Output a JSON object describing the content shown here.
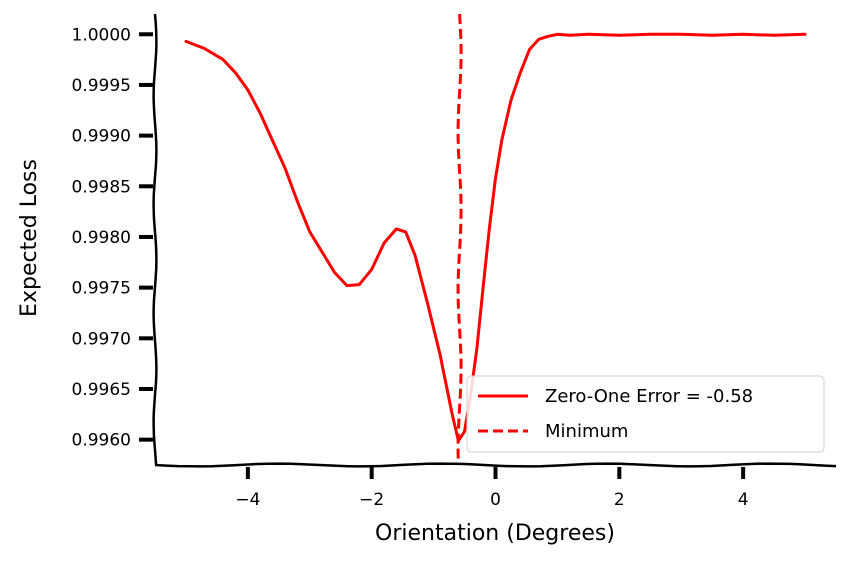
{
  "chart_data": {
    "type": "line",
    "title": "",
    "xlabel": "Orientation (Degrees)",
    "ylabel": "Expected Loss",
    "xlim": [
      -5.5,
      5.5
    ],
    "ylim": [
      0.99575,
      1.0002
    ],
    "x_ticks": [
      -4,
      -2,
      0,
      2,
      4
    ],
    "x_tick_labels": [
      "−4",
      "−2",
      "0",
      "2",
      "4"
    ],
    "y_ticks": [
      0.996,
      0.9965,
      0.997,
      0.9975,
      0.998,
      0.9985,
      0.999,
      0.9995,
      1.0
    ],
    "y_tick_labels": [
      "0.9960",
      "0.9965",
      "0.9970",
      "0.9975",
      "0.9980",
      "0.9985",
      "0.9990",
      "0.9995",
      "1.0000"
    ],
    "grid": false,
    "legend_position": "lower-right",
    "series": [
      {
        "name": "Zero-One Error = -0.58",
        "color": "#ff0000",
        "style": "solid",
        "x": [
          -5.0,
          -4.7,
          -4.4,
          -4.2,
          -4.0,
          -3.8,
          -3.6,
          -3.4,
          -3.2,
          -3.0,
          -2.8,
          -2.6,
          -2.4,
          -2.2,
          -2.0,
          -1.8,
          -1.6,
          -1.45,
          -1.3,
          -1.1,
          -0.9,
          -0.8,
          -0.7,
          -0.6,
          -0.5,
          -0.4,
          -0.3,
          -0.2,
          -0.1,
          0.0,
          0.1,
          0.25,
          0.4,
          0.55,
          0.7,
          0.85,
          1.0,
          1.2,
          1.5,
          2.0,
          2.5,
          3.0,
          3.5,
          4.0,
          4.5,
          5.0
        ],
        "y": [
          0.99993,
          0.99986,
          0.99975,
          0.99962,
          0.99945,
          0.99922,
          0.99895,
          0.99868,
          0.99835,
          0.99805,
          0.99785,
          0.99765,
          0.99752,
          0.99753,
          0.99768,
          0.99794,
          0.99808,
          0.99805,
          0.99782,
          0.99735,
          0.99685,
          0.99655,
          0.99625,
          0.99599,
          0.99608,
          0.99645,
          0.9969,
          0.9975,
          0.99808,
          0.99858,
          0.99895,
          0.99935,
          0.99962,
          0.99985,
          0.99995,
          0.99998,
          1.0,
          0.99999,
          1.0,
          0.99999,
          1.0,
          1.0,
          0.99999,
          1.0,
          0.99999,
          1.0
        ]
      },
      {
        "name": "Minimum",
        "color": "#ff0000",
        "style": "dashed",
        "x": [
          -0.58,
          -0.58
        ],
        "y": [
          0.99575,
          1.0002
        ]
      }
    ]
  }
}
